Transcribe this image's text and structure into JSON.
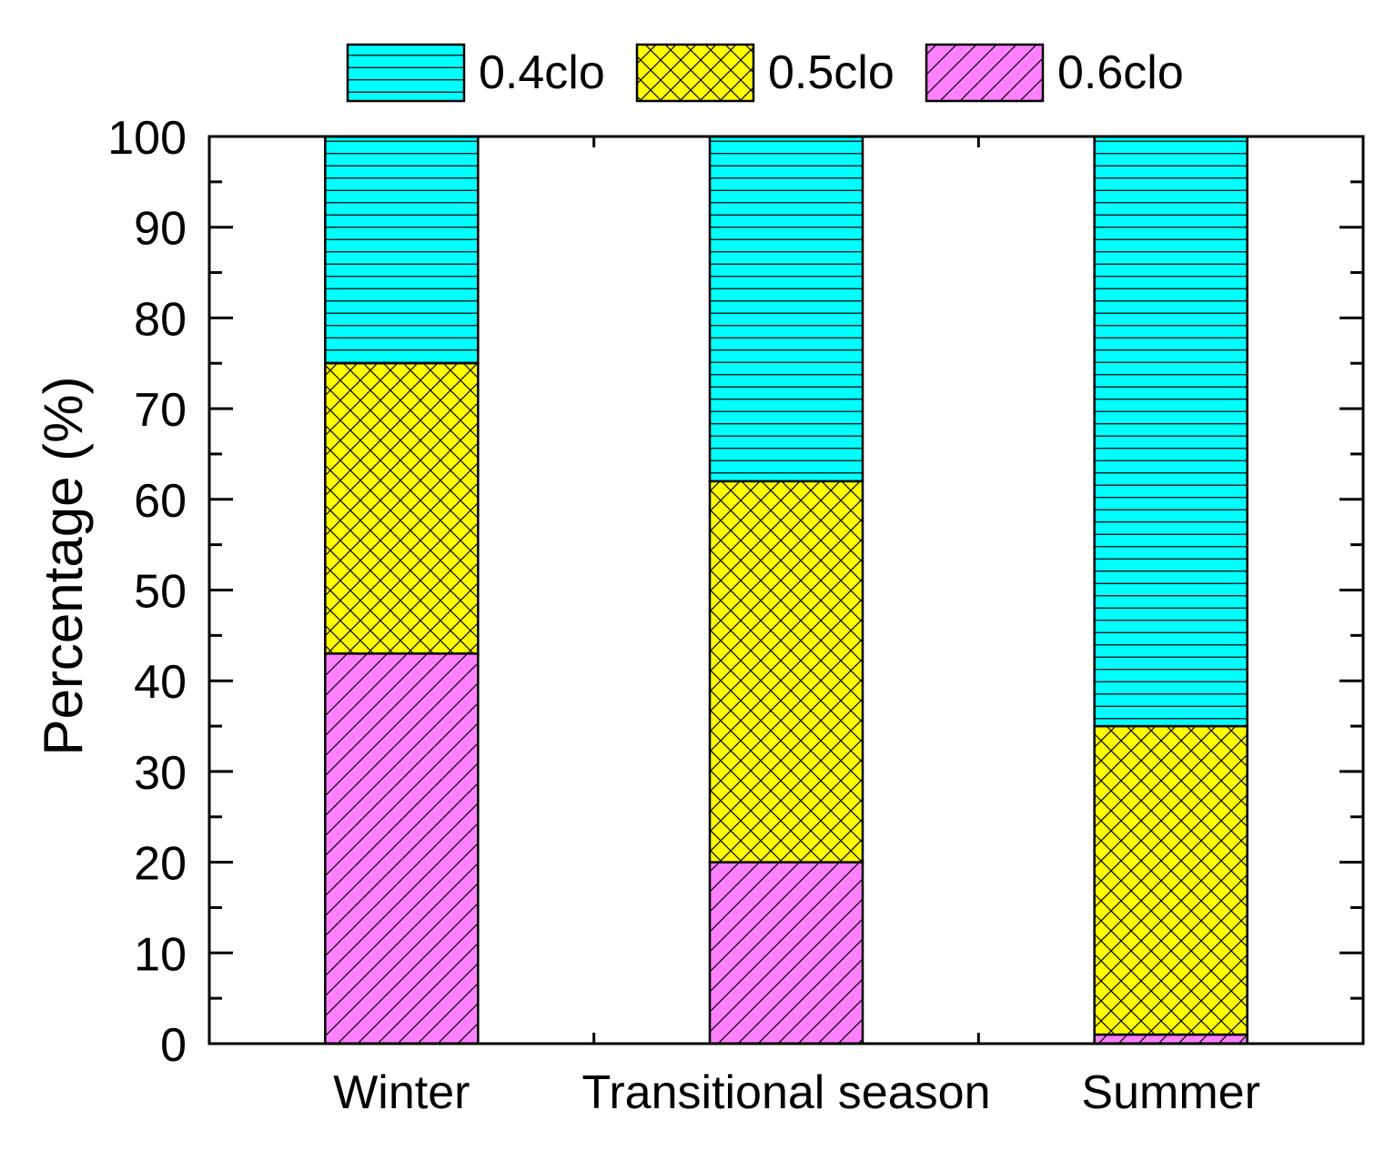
{
  "chart_data": {
    "type": "bar",
    "stacked": true,
    "title": "",
    "xlabel": "",
    "ylabel": "Percentage (%)",
    "ylim": [
      0,
      100
    ],
    "y_major_ticks": [
      0,
      10,
      20,
      30,
      40,
      50,
      60,
      70,
      80,
      90,
      100
    ],
    "y_minor_step": 5,
    "categories": [
      "Winter",
      "Transitional season",
      "Summer"
    ],
    "series": [
      {
        "name": "0.6clo",
        "values": [
          43,
          20,
          1
        ],
        "color": "#ff80ff",
        "pattern": "diagonal-hatch"
      },
      {
        "name": "0.5clo",
        "values": [
          32,
          42,
          34
        ],
        "color": "#ffff00",
        "pattern": "cross-hatch"
      },
      {
        "name": "0.4clo",
        "values": [
          25,
          38,
          65
        ],
        "color": "#00ffff",
        "pattern": "horizontal-lines"
      }
    ],
    "legend": {
      "placement": "top-center",
      "order": [
        "0.4clo",
        "0.5clo",
        "0.6clo"
      ]
    },
    "grid": false
  }
}
